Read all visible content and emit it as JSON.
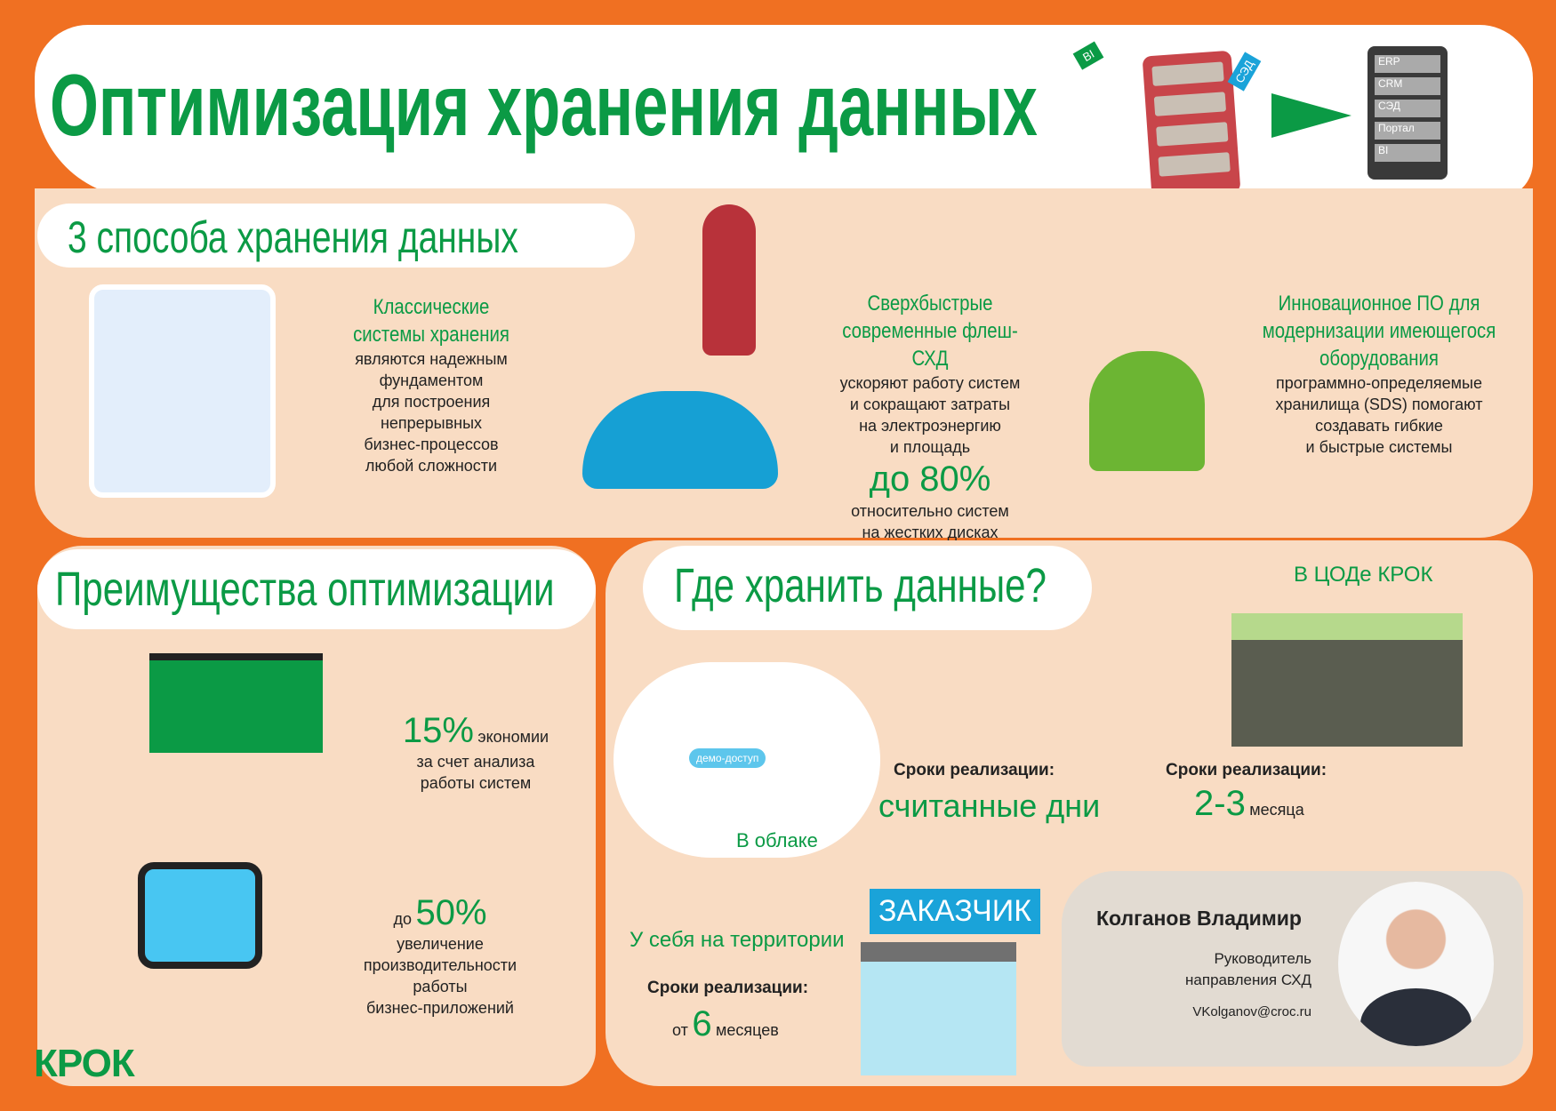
{
  "title": "Оптимизация хранения данных",
  "header_illustration": {
    "tags_left": [
      "BI",
      "СЭД"
    ],
    "server_labels": [
      "ERP",
      "CRM",
      "СЭД",
      "Портал",
      "BI"
    ]
  },
  "ways": {
    "heading": "3 способа хранения данных",
    "items": [
      {
        "title": "Классические системы хранения",
        "text": [
          "являются надежным",
          "фундаментом",
          "для построения",
          "непрерывных",
          "бизнес-процессов",
          "любой сложности"
        ]
      },
      {
        "title": "Сверхбыстрые современные флеш-СХД",
        "text": [
          "ускоряют работу систем",
          "и сокращают затраты",
          "на электроэнергию",
          "и площадь"
        ],
        "highlight": "до 80%",
        "text_after": [
          "относительно систем",
          "на жестких дисках"
        ]
      },
      {
        "title": "Инновационное ПО для модернизации имеющегося оборудования",
        "text": [
          "программно-определяемые",
          "хранилища (SDS) помогают",
          "создавать гибкие",
          "и быстрые системы"
        ]
      }
    ]
  },
  "advantages": {
    "heading": "Преимущества оптимизации",
    "items": [
      {
        "value": "15%",
        "suffix": "экономии",
        "text": [
          "за счет анализа",
          "работы систем"
        ]
      },
      {
        "prefix": "до",
        "value": "50%",
        "text": [
          "увеличение",
          "производительности",
          "работы",
          "бизнес-приложений"
        ]
      }
    ]
  },
  "where": {
    "heading": "Где хранить данные?",
    "cloud": {
      "label": "В облаке",
      "badge": "демо-доступ",
      "term_label": "Сроки реализации:",
      "term": "считанные дни"
    },
    "dc": {
      "label": "В ЦОДе КРОК",
      "term_label": "Сроки реализации:",
      "term_value": "2-3",
      "term_unit": "месяца"
    },
    "onprem": {
      "label": "У себя на территории",
      "sign": "ЗАКАЗЧИК",
      "term_label": "Сроки реализации:",
      "term_prefix": "от",
      "term_value": "6",
      "term_unit": "месяцев"
    }
  },
  "contact": {
    "name": "Колганов Владимир",
    "role": [
      "Руководитель",
      "направления СХД"
    ],
    "email": "VKolganov@croc.ru"
  },
  "logo": "КРОК",
  "colors": {
    "orange": "#f07022",
    "green": "#0b9a45",
    "peach": "#f9dcc3",
    "blue": "#1aa3d9"
  }
}
